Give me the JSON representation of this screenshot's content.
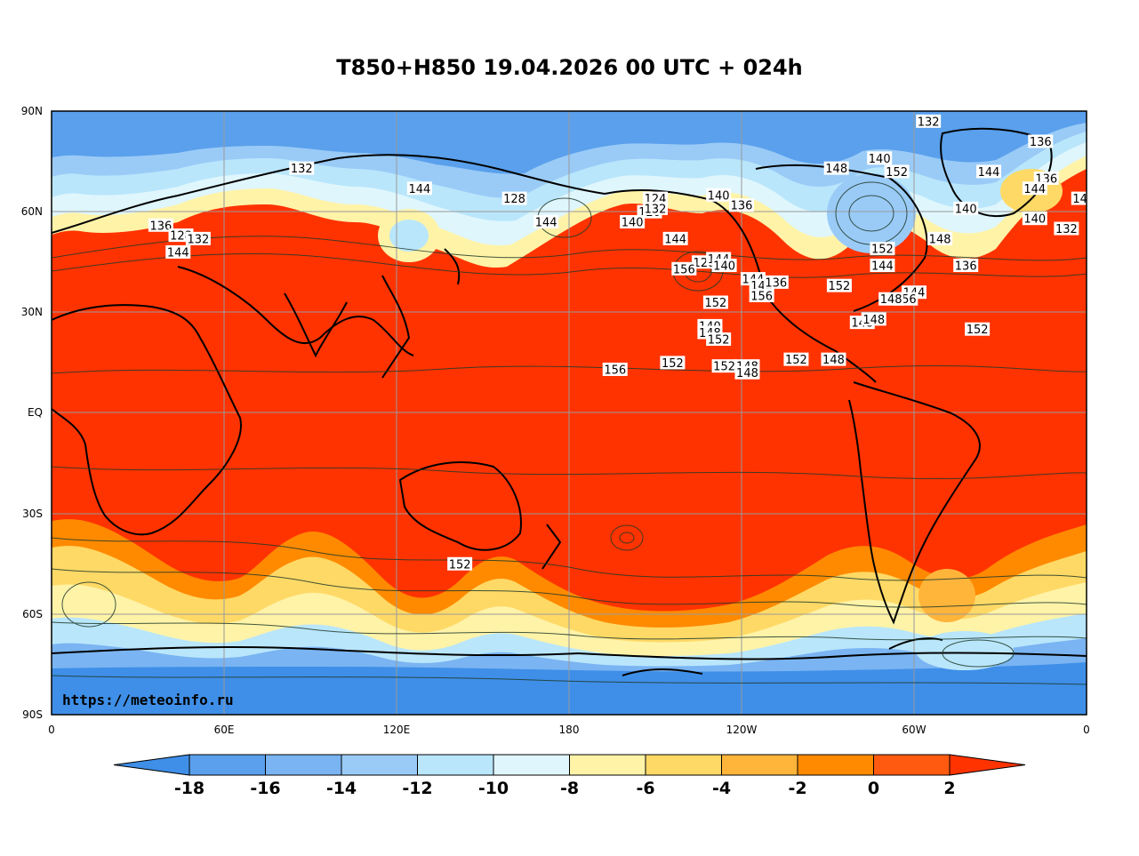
{
  "title": "T850+H850 19.04.2026 00 UTC + 024h",
  "watermark": "https://meteoinfo.ru",
  "axes": {
    "lat_labels": [
      "90N",
      "60N",
      "30N",
      "EQ",
      "30S",
      "60S",
      "90S"
    ],
    "lon_labels": [
      "0",
      "60E",
      "120E",
      "180",
      "120W",
      "60W",
      "0"
    ]
  },
  "colorbar": {
    "labels": [
      "-18",
      "-16",
      "-14",
      "-12",
      "-10",
      "-8",
      "-6",
      "-4",
      "-2",
      "0",
      "2"
    ],
    "colors": [
      "#3f8fe8",
      "#5aa0ec",
      "#7ab4f2",
      "#9acbf7",
      "#b9e6fb",
      "#dff6fd",
      "#fff3a8",
      "#ffd966",
      "#ffb43a",
      "#ff8a00",
      "#ff5a10",
      "#ff3300"
    ]
  },
  "contour_labels": [
    {
      "t": "132",
      "lon": -55,
      "lat": 87
    },
    {
      "t": "136",
      "lon": -16,
      "lat": 81
    },
    {
      "t": "140",
      "lon": -72,
      "lat": 76
    },
    {
      "t": "148",
      "lon": -87,
      "lat": 73
    },
    {
      "t": "152",
      "lon": -66,
      "lat": 72
    },
    {
      "t": "144",
      "lon": -34,
      "lat": 72
    },
    {
      "t": "136",
      "lon": -14,
      "lat": 70
    },
    {
      "t": "144",
      "lon": -18,
      "lat": 67
    },
    {
      "t": "140",
      "lon": -42,
      "lat": 61
    },
    {
      "t": "136",
      "lon": -42,
      "lat": 44
    },
    {
      "t": "140",
      "lon": -1,
      "lat": 64
    },
    {
      "t": "136",
      "lon": 38,
      "lat": 56
    },
    {
      "t": "128",
      "lon": 45,
      "lat": 53
    },
    {
      "t": "132",
      "lon": 51,
      "lat": 52
    },
    {
      "t": "144",
      "lon": 44,
      "lat": 48
    },
    {
      "t": "140",
      "lon": -18,
      "lat": 58
    },
    {
      "t": "132",
      "lon": -7,
      "lat": 55
    },
    {
      "t": "148",
      "lon": -51,
      "lat": 52
    },
    {
      "t": "152",
      "lon": -71,
      "lat": 49
    },
    {
      "t": "144",
      "lon": -71,
      "lat": 44
    },
    {
      "t": "152",
      "lon": -86,
      "lat": 38
    },
    {
      "t": "148",
      "lon": -78,
      "lat": 27
    },
    {
      "t": "148",
      "lon": -88,
      "lat": 16
    },
    {
      "t": "148",
      "lon": -118,
      "lat": 14
    },
    {
      "t": "144",
      "lon": -60,
      "lat": 36
    },
    {
      "t": "156",
      "lon": -63,
      "lat": 34
    },
    {
      "t": "144",
      "lon": -116,
      "lat": 40
    },
    {
      "t": "148",
      "lon": -113,
      "lat": 38
    },
    {
      "t": "148",
      "lon": -68,
      "lat": 34
    },
    {
      "t": "148",
      "lon": -74,
      "lat": 28
    },
    {
      "t": "152",
      "lon": -38,
      "lat": 25
    },
    {
      "t": "148",
      "lon": -118,
      "lat": 12
    },
    {
      "t": "132",
      "lon": 87,
      "lat": 73
    },
    {
      "t": "144",
      "lon": 128,
      "lat": 67
    },
    {
      "t": "140",
      "lon": -128,
      "lat": 65
    },
    {
      "t": "136",
      "lon": -120,
      "lat": 62
    },
    {
      "t": "128",
      "lon": 161,
      "lat": 64
    },
    {
      "t": "120",
      "lon": -152,
      "lat": 60
    },
    {
      "t": "124",
      "lon": -150,
      "lat": 64
    },
    {
      "t": "132",
      "lon": -150,
      "lat": 61
    },
    {
      "t": "140",
      "lon": -158,
      "lat": 57
    },
    {
      "t": "128",
      "lon": -133,
      "lat": 45
    },
    {
      "t": "144",
      "lon": 172,
      "lat": 57
    },
    {
      "t": "156",
      "lon": -140,
      "lat": 43
    },
    {
      "t": "144",
      "lon": -128,
      "lat": 46
    },
    {
      "t": "140",
      "lon": -126,
      "lat": 44
    },
    {
      "t": "136",
      "lon": -108,
      "lat": 39
    },
    {
      "t": "144",
      "lon": -143,
      "lat": 52
    },
    {
      "t": "152",
      "lon": -129,
      "lat": 33
    },
    {
      "t": "140",
      "lon": -131,
      "lat": 26
    },
    {
      "t": "148",
      "lon": -131,
      "lat": 24
    },
    {
      "t": "152",
      "lon": -128,
      "lat": 22
    },
    {
      "t": "152",
      "lon": -144,
      "lat": 15
    },
    {
      "t": "152",
      "lon": -126,
      "lat": 14
    },
    {
      "t": "156",
      "lon": -113,
      "lat": 35
    },
    {
      "t": "152",
      "lon": -101,
      "lat": 16
    },
    {
      "t": "152",
      "lon": 142,
      "lat": -45
    },
    {
      "t": "156",
      "lon": -164,
      "lat": 13
    }
  ],
  "contours_note": ""
}
